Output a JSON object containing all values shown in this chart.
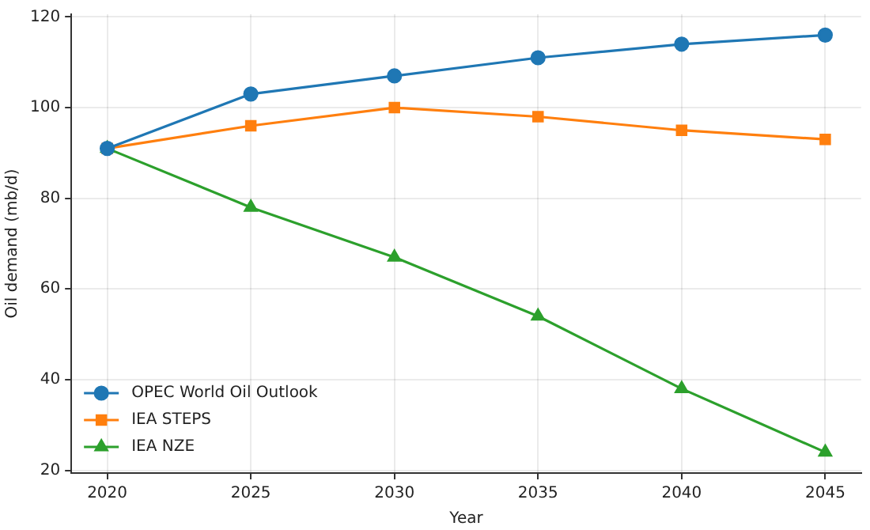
{
  "chart_data": {
    "type": "line",
    "xlabel": "Year",
    "ylabel": "Oil demand (mb/d)",
    "x": [
      2020,
      2025,
      2030,
      2035,
      2040,
      2045
    ],
    "series": [
      {
        "name": "OPEC World Oil Outlook",
        "color": "#1f77b4",
        "marker": "circle",
        "values": [
          91,
          103,
          107,
          111,
          114,
          116
        ]
      },
      {
        "name": "IEA STEPS",
        "color": "#ff7f0e",
        "marker": "square",
        "values": [
          91,
          96,
          100,
          98,
          95,
          93
        ]
      },
      {
        "name": "IEA NZE",
        "color": "#2ca02c",
        "marker": "triangle",
        "values": [
          91,
          78,
          67,
          54,
          38,
          24
        ]
      }
    ],
    "xlim": [
      2018.75,
      2046.25
    ],
    "xticks": [
      2020,
      2025,
      2030,
      2035,
      2040,
      2045
    ],
    "ylim": [
      19.4,
      120.6
    ],
    "yticks": [
      20,
      40,
      60,
      80,
      100,
      120
    ],
    "grid": true,
    "legend": "bottom left",
    "line_style": "solid"
  }
}
